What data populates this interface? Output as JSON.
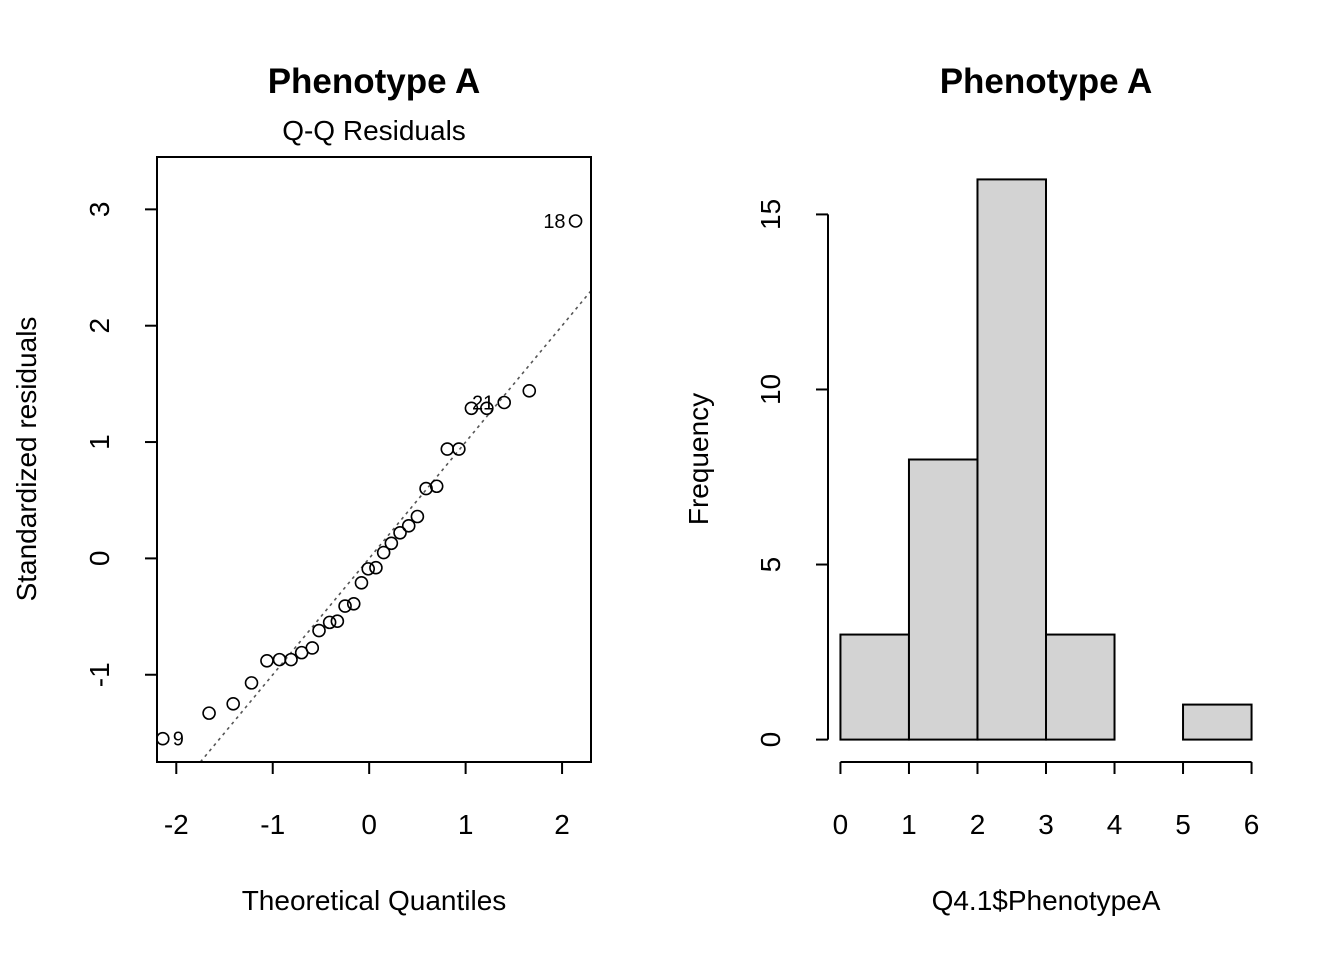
{
  "chart_data": [
    {
      "type": "scatter",
      "title": "Phenotype A",
      "subtitle": "Q-Q Residuals",
      "xlabel": "Theoretical Quantiles",
      "ylabel": "Standardized residuals",
      "xlim": [
        -2.2,
        2.3
      ],
      "ylim": [
        -1.75,
        3.45
      ],
      "xticks": [
        -2,
        -1,
        0,
        1,
        2
      ],
      "xtick_labels": [
        "-2",
        "-1",
        "0",
        "1",
        "2"
      ],
      "yticks": [
        -1,
        0,
        1,
        2,
        3
      ],
      "ytick_labels": [
        "-1",
        "0",
        "1",
        "2",
        "3"
      ],
      "grid": false,
      "points": [
        {
          "x": -2.14,
          "y": -1.55,
          "label": "9"
        },
        {
          "x": -1.66,
          "y": -1.33
        },
        {
          "x": -1.41,
          "y": -1.25
        },
        {
          "x": -1.22,
          "y": -1.07
        },
        {
          "x": -1.06,
          "y": -0.88
        },
        {
          "x": -0.93,
          "y": -0.87
        },
        {
          "x": -0.81,
          "y": -0.87
        },
        {
          "x": -0.7,
          "y": -0.81
        },
        {
          "x": -0.59,
          "y": -0.77
        },
        {
          "x": -0.52,
          "y": -0.62
        },
        {
          "x": -0.41,
          "y": -0.55
        },
        {
          "x": -0.33,
          "y": -0.54
        },
        {
          "x": -0.25,
          "y": -0.41
        },
        {
          "x": -0.16,
          "y": -0.39
        },
        {
          "x": -0.08,
          "y": -0.21
        },
        {
          "x": -0.01,
          "y": -0.09
        },
        {
          "x": 0.07,
          "y": -0.08
        },
        {
          "x": 0.15,
          "y": 0.05
        },
        {
          "x": 0.23,
          "y": 0.13
        },
        {
          "x": 0.32,
          "y": 0.22
        },
        {
          "x": 0.41,
          "y": 0.28
        },
        {
          "x": 0.5,
          "y": 0.36
        },
        {
          "x": 0.59,
          "y": 0.6
        },
        {
          "x": 0.7,
          "y": 0.62
        },
        {
          "x": 0.81,
          "y": 0.94
        },
        {
          "x": 0.93,
          "y": 0.94
        },
        {
          "x": 1.06,
          "y": 1.29
        },
        {
          "x": 1.22,
          "y": 1.29
        },
        {
          "x": 1.4,
          "y": 1.34,
          "label": "21"
        },
        {
          "x": 1.66,
          "y": 1.44
        },
        {
          "x": 2.14,
          "y": 2.9,
          "label": "18"
        }
      ],
      "reference_line": {
        "intercept": 0.0,
        "slope": 1.0
      }
    },
    {
      "type": "bar",
      "title": "Phenotype A",
      "xlabel": "Q4.1$PhenotypeA",
      "ylabel": "Frequency",
      "bins": [
        [
          0,
          1
        ],
        [
          1,
          2
        ],
        [
          2,
          3
        ],
        [
          3,
          4
        ],
        [
          4,
          5
        ],
        [
          5,
          6
        ]
      ],
      "values": [
        3,
        8,
        16,
        3,
        0,
        1
      ],
      "xticks": [
        0,
        1,
        2,
        3,
        4,
        5,
        6
      ],
      "xtick_labels": [
        "0",
        "1",
        "2",
        "3",
        "4",
        "5",
        "6"
      ],
      "yticks": [
        0,
        5,
        10,
        15
      ],
      "ytick_labels": [
        "0",
        "5",
        "10",
        "15"
      ],
      "xlim": [
        -0.24,
        6.24
      ],
      "ylim": [
        -0.64,
        16.64
      ],
      "bar_color": "#d3d3d3",
      "grid": false
    }
  ]
}
